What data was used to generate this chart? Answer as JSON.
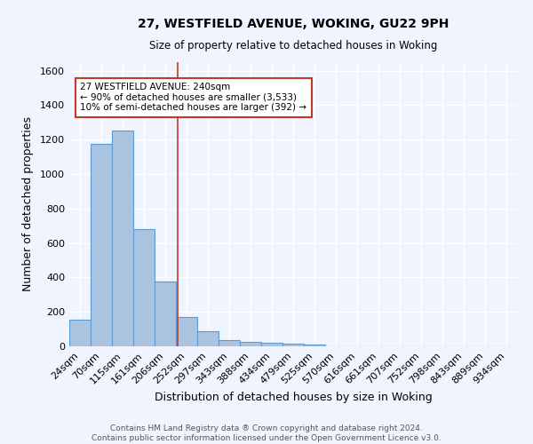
{
  "title1": "27, WESTFIELD AVENUE, WOKING, GU22 9PH",
  "title2": "Size of property relative to detached houses in Woking",
  "xlabel": "Distribution of detached houses by size in Woking",
  "ylabel": "Number of detached properties",
  "footer1": "Contains HM Land Registry data ® Crown copyright and database right 2024.",
  "footer2": "Contains public sector information licensed under the Open Government Licence v3.0.",
  "categories": [
    "24sqm",
    "70sqm",
    "115sqm",
    "161sqm",
    "206sqm",
    "252sqm",
    "297sqm",
    "343sqm",
    "388sqm",
    "434sqm",
    "479sqm",
    "525sqm",
    "570sqm",
    "616sqm",
    "661sqm",
    "707sqm",
    "752sqm",
    "798sqm",
    "843sqm",
    "889sqm",
    "934sqm"
  ],
  "values": [
    155,
    1175,
    1255,
    680,
    375,
    170,
    90,
    37,
    27,
    20,
    14,
    12,
    0,
    0,
    0,
    0,
    0,
    0,
    0,
    0,
    0
  ],
  "bar_color": "#aac4e0",
  "bar_edge_color": "#5b9bd5",
  "background_color": "#f0f4ff",
  "grid_color": "#ffffff",
  "property_line_x": 4.6,
  "property_line_color": "#c0392b",
  "annotation_line1": "27 WESTFIELD AVENUE: 240sqm",
  "annotation_line2": "← 90% of detached houses are smaller (3,533)",
  "annotation_line3": "10% of semi-detached houses are larger (392) →",
  "ylim": [
    0,
    1650
  ],
  "yticks": [
    0,
    200,
    400,
    600,
    800,
    1000,
    1200,
    1400,
    1600
  ]
}
